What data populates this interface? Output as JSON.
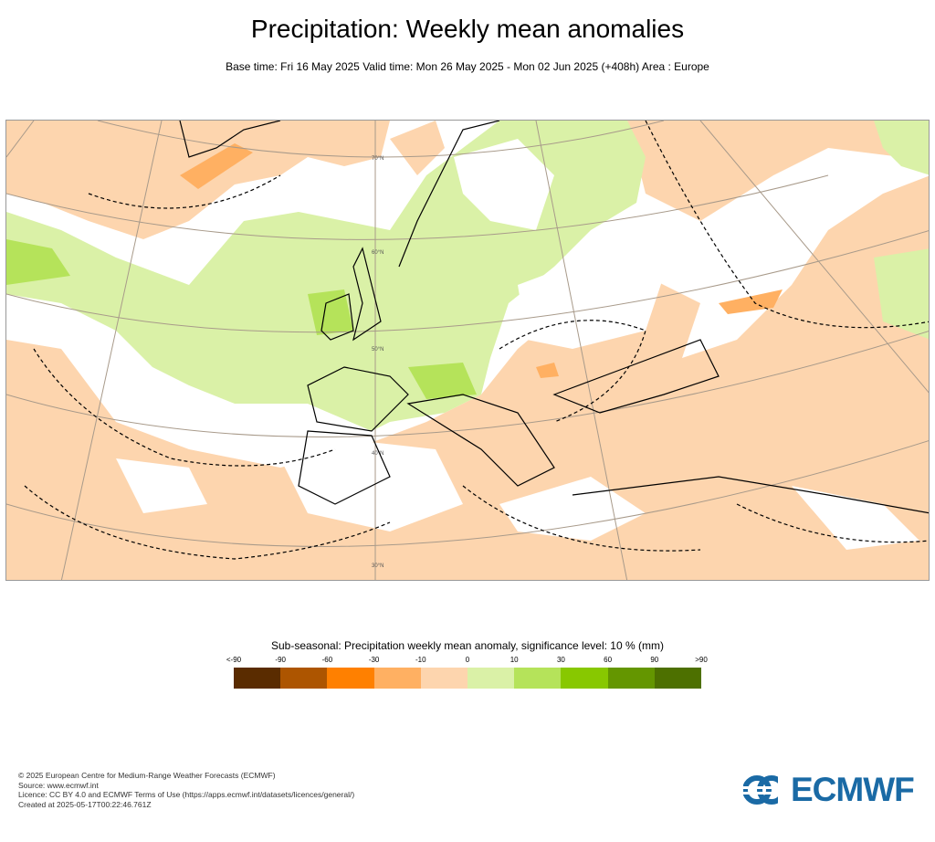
{
  "header": {
    "title": "Precipitation: Weekly mean anomalies",
    "subtitle": "Base time: Fri 16 May 2025 Valid time: Mon 26 May 2025 - Mon 02 Jun 2025 (+408h) Area : Europe"
  },
  "map": {
    "area": "Europe",
    "latitude_labels": [
      "70°N",
      "60°N",
      "50°N",
      "40°N",
      "30°N"
    ],
    "colors": {
      "dry": "#fdd5ae",
      "drier": "#ffb062",
      "wet": "#daf1a7",
      "wetter": "#b5e35a",
      "neutral": "#ffffff",
      "coast": "#000000",
      "grid": "#a89a8a"
    }
  },
  "legend": {
    "title": "Sub-seasonal: Precipitation weekly mean anomaly, significance level: 10 % (mm)",
    "ticks": [
      "<-90",
      "-90",
      "-60",
      "-30",
      "-10",
      "0",
      "10",
      "30",
      "60",
      "90",
      ">90"
    ],
    "colors": [
      "#5a2c00",
      "#ad5500",
      "#ff8000",
      "#ffb062",
      "#fdd5ae",
      "#daf1a7",
      "#b5e35a",
      "#88c800",
      "#649600",
      "#4d7000"
    ]
  },
  "footer": {
    "lines": [
      "© 2025 European Centre for Medium-Range Weather Forecasts (ECMWF)",
      "Source: www.ecmwf.int",
      "Licence: CC BY 4.0 and ECMWF Terms of Use (https://apps.ecmwf.int/datasets/licences/general/)",
      "Created at 2025-05-17T00:22:46.761Z"
    ]
  },
  "logo": {
    "text": "ECMWF",
    "color": "#1a6aa5"
  }
}
